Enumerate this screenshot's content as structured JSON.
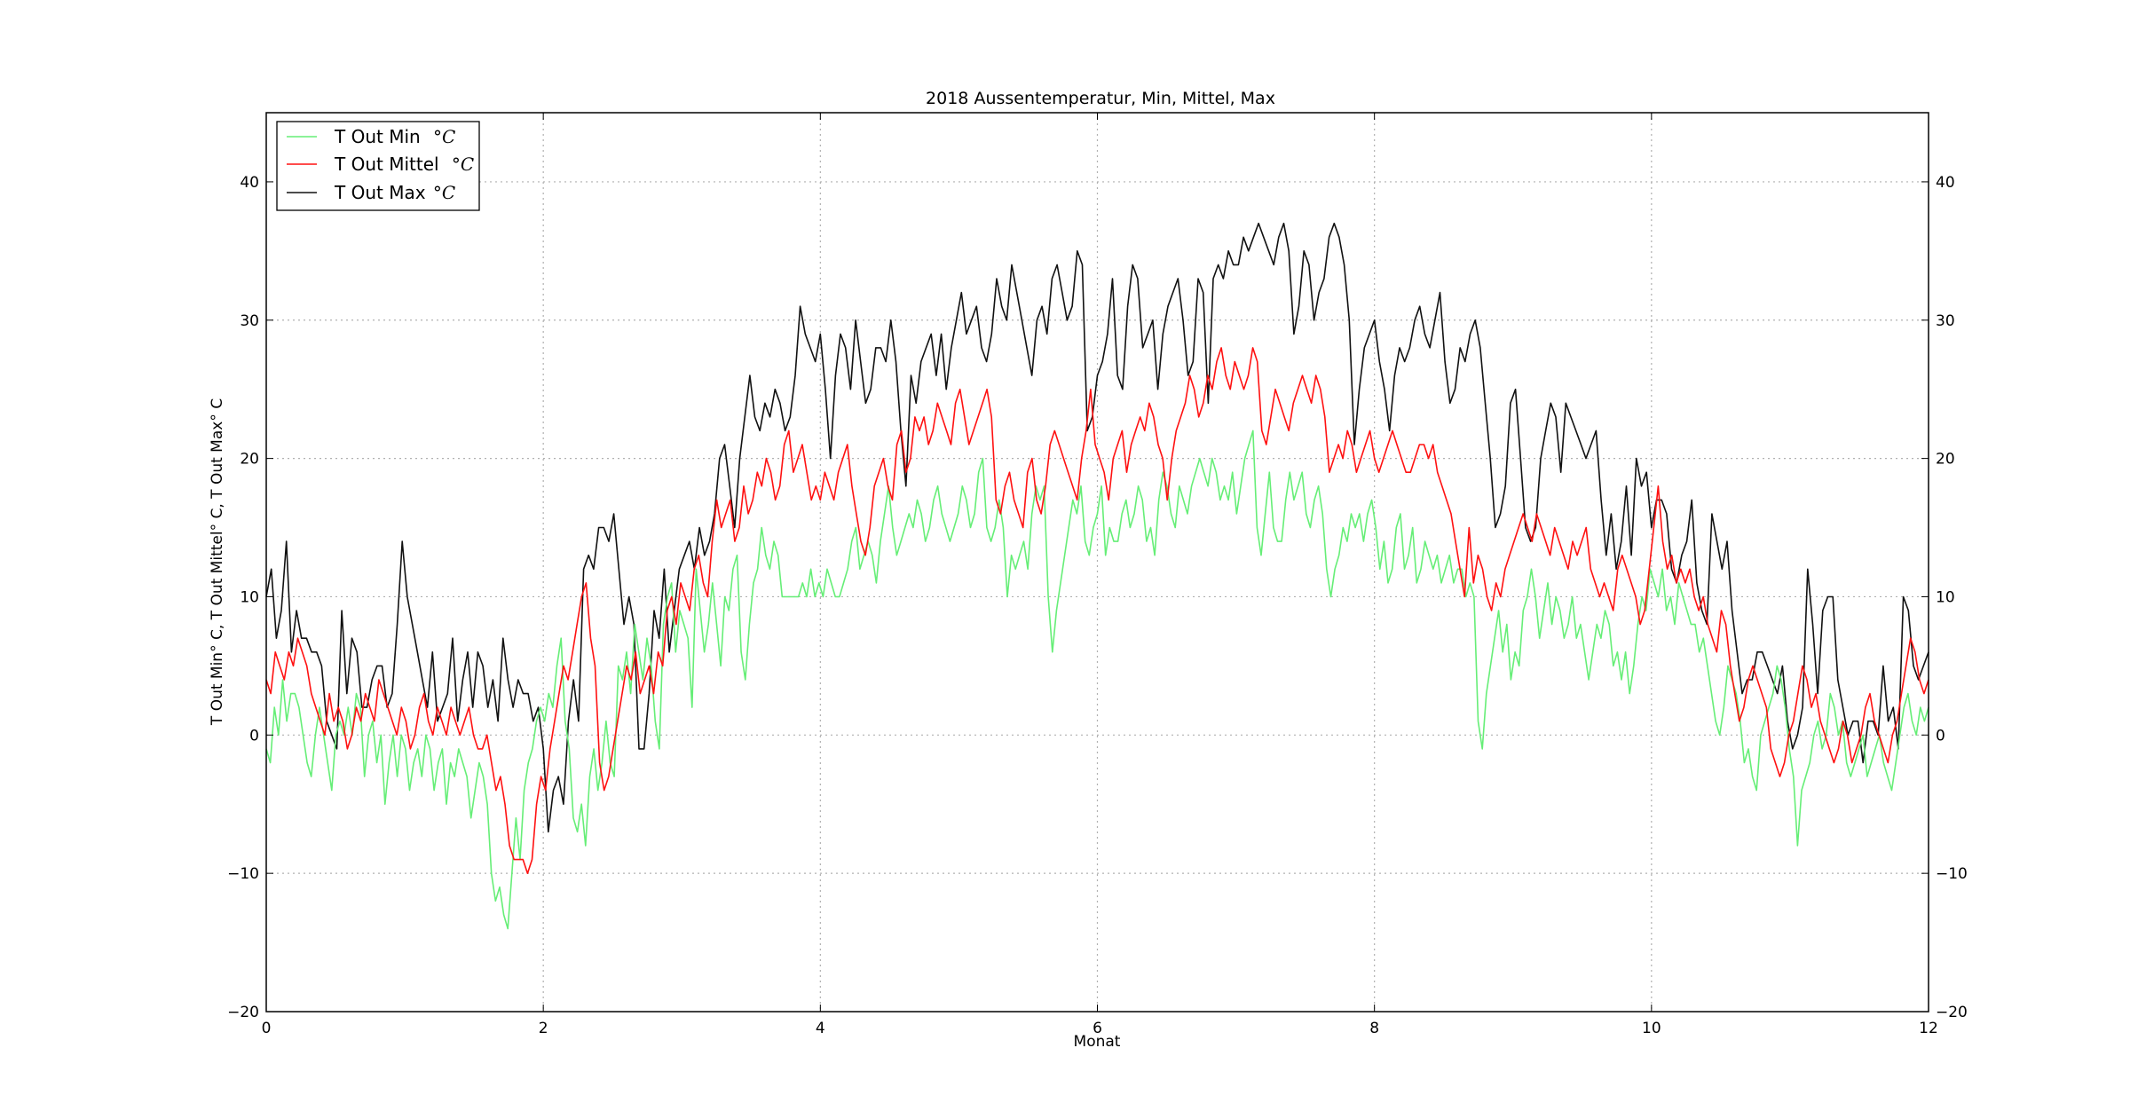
{
  "chart_data": {
    "type": "line",
    "title": "2018 Aussentemperatur, Min, Mittel, Max",
    "xlabel": "Monat",
    "ylabel": "T Out Min° C, T Out Mittel° C, T Out Max° C",
    "xlim": [
      0,
      12
    ],
    "ylim": [
      -20,
      45
    ],
    "xticks": [
      0,
      2,
      4,
      6,
      8,
      10,
      12
    ],
    "yticks": [
      -20,
      -10,
      0,
      10,
      20,
      30,
      40
    ],
    "grid": true,
    "legend_position": "top-left",
    "series": [
      {
        "name": "T Out Min °C",
        "label_text": "T Out Min",
        "label_unit": "°C",
        "color": "#66ee77",
        "x_step_months": 0.0333,
        "values": [
          -1,
          -2,
          2,
          0,
          4,
          1,
          3,
          3,
          2,
          0,
          -2,
          -3,
          0,
          2,
          0,
          -2,
          -4,
          0,
          1,
          0,
          2,
          0,
          3,
          2,
          -3,
          0,
          1,
          -2,
          0,
          -5,
          -2,
          0,
          -3,
          0,
          -1,
          -4,
          -2,
          -1,
          -3,
          0,
          -1,
          -4,
          -2,
          -1,
          -5,
          -2,
          -3,
          -1,
          -2,
          -3,
          -6,
          -4,
          -2,
          -3,
          -5,
          -10,
          -12,
          -11,
          -13,
          -14,
          -10,
          -6,
          -9,
          -4,
          -2,
          -1,
          1,
          2,
          1,
          3,
          2,
          5,
          7,
          1,
          -1,
          -6,
          -7,
          -5,
          -8,
          -3,
          -1,
          -4,
          -2,
          1,
          -2,
          -3,
          5,
          4,
          6,
          3,
          8,
          6,
          4,
          7,
          5,
          1,
          -1,
          8,
          10,
          11,
          6,
          9,
          8,
          7,
          2,
          12,
          9,
          6,
          8,
          11,
          8,
          5,
          10,
          9,
          12,
          13,
          6,
          4,
          8,
          11,
          12,
          15,
          13,
          12,
          14,
          13,
          10,
          10,
          10,
          10,
          10,
          11,
          10,
          12,
          10,
          11,
          10,
          12,
          11,
          10,
          10,
          11,
          12,
          14,
          15,
          12,
          13,
          14,
          13,
          11,
          14,
          16,
          18,
          15,
          13,
          14,
          15,
          16,
          15,
          17,
          16,
          14,
          15,
          17,
          18,
          16,
          15,
          14,
          15,
          16,
          18,
          17,
          15,
          16,
          19,
          20,
          15,
          14,
          15,
          17,
          15,
          10,
          13,
          12,
          13,
          14,
          12,
          16,
          18,
          17,
          18,
          10,
          6,
          9,
          11,
          13,
          15,
          17,
          16,
          18,
          14,
          13,
          15,
          16,
          18,
          13,
          15,
          14,
          14,
          16,
          17,
          15,
          16,
          18,
          17,
          14,
          15,
          13,
          17,
          19,
          18,
          16,
          15,
          18,
          17,
          16,
          18,
          19,
          20,
          19,
          18,
          20,
          19,
          17,
          18,
          17,
          19,
          16,
          18,
          20,
          21,
          22,
          15,
          13,
          16,
          19,
          15,
          14,
          14,
          17,
          19,
          17,
          18,
          19,
          16,
          15,
          17,
          18,
          16,
          12,
          10,
          12,
          13,
          15,
          14,
          16,
          15,
          16,
          14,
          16,
          17,
          15,
          12,
          14,
          11,
          12,
          15,
          16,
          12,
          13,
          15,
          11,
          12,
          14,
          13,
          12,
          13,
          11,
          12,
          13,
          11,
          12,
          12,
          10,
          11,
          10,
          1,
          -1,
          3,
          5,
          7,
          9,
          6,
          8,
          4,
          6,
          5,
          9,
          10,
          12,
          10,
          7,
          9,
          11,
          8,
          10,
          9,
          7,
          8,
          10,
          7,
          8,
          6,
          4,
          6,
          8,
          7,
          9,
          8,
          5,
          6,
          4,
          6,
          3,
          5,
          8,
          10,
          9,
          12,
          11,
          10,
          12,
          9,
          10,
          8,
          11,
          10,
          9,
          8,
          8,
          6,
          7,
          5,
          3,
          1,
          0,
          2,
          5,
          4,
          3,
          1,
          -2,
          -1,
          -3,
          -4,
          0,
          1,
          2,
          3,
          5,
          4,
          2,
          -1,
          -3,
          -8,
          -4,
          -3,
          -2,
          0,
          1,
          -1,
          0,
          3,
          2,
          0,
          1,
          -2,
          -3,
          -2,
          -1,
          0,
          -3,
          -2,
          -1,
          0,
          -2,
          -3,
          -4,
          -2,
          0,
          2,
          3,
          1,
          0,
          2,
          1,
          2
        ]
      },
      {
        "name": "T Out Mittel °C",
        "label_text": "T Out Mittel",
        "label_unit": "°C",
        "color": "#ff1111",
        "x_step_months": 0.0333,
        "values": [
          4,
          3,
          6,
          5,
          4,
          6,
          5,
          7,
          6,
          5,
          3,
          2,
          1,
          0,
          3,
          1,
          2,
          1,
          -1,
          0,
          2,
          1,
          3,
          2,
          1,
          4,
          3,
          2,
          1,
          0,
          2,
          1,
          -1,
          0,
          2,
          3,
          1,
          0,
          2,
          1,
          0,
          2,
          1,
          0,
          1,
          2,
          0,
          -1,
          -1,
          0,
          -2,
          -4,
          -3,
          -5,
          -8,
          -9,
          -9,
          -9,
          -10,
          -9,
          -5,
          -3,
          -4,
          -1,
          1,
          3,
          5,
          4,
          6,
          8,
          10,
          11,
          7,
          5,
          -2,
          -4,
          -3,
          -1,
          1,
          3,
          5,
          4,
          6,
          3,
          4,
          5,
          3,
          6,
          5,
          9,
          10,
          8,
          11,
          10,
          9,
          12,
          13,
          11,
          10,
          14,
          17,
          15,
          16,
          17,
          14,
          15,
          18,
          16,
          17,
          19,
          18,
          20,
          19,
          17,
          18,
          21,
          22,
          19,
          20,
          21,
          19,
          17,
          18,
          17,
          19,
          18,
          17,
          19,
          20,
          21,
          18,
          16,
          14,
          13,
          15,
          18,
          19,
          20,
          18,
          17,
          21,
          22,
          19,
          20,
          23,
          22,
          23,
          21,
          22,
          24,
          23,
          22,
          21,
          24,
          25,
          23,
          21,
          22,
          23,
          24,
          25,
          23,
          17,
          16,
          18,
          19,
          17,
          16,
          15,
          19,
          20,
          17,
          16,
          18,
          21,
          22,
          21,
          20,
          19,
          18,
          17,
          20,
          22,
          25,
          21,
          20,
          19,
          17,
          20,
          21,
          22,
          19,
          21,
          22,
          23,
          22,
          24,
          23,
          21,
          20,
          17,
          20,
          22,
          23,
          24,
          26,
          25,
          23,
          24,
          26,
          25,
          27,
          28,
          26,
          25,
          27,
          26,
          25,
          26,
          28,
          27,
          22,
          21,
          23,
          25,
          24,
          23,
          22,
          24,
          25,
          26,
          25,
          24,
          26,
          25,
          23,
          19,
          20,
          21,
          20,
          22,
          21,
          19,
          20,
          21,
          22,
          20,
          19,
          20,
          21,
          22,
          21,
          20,
          19,
          19,
          20,
          21,
          21,
          20,
          21,
          19,
          18,
          17,
          16,
          14,
          12,
          10,
          15,
          11,
          13,
          12,
          10,
          9,
          11,
          10,
          12,
          13,
          14,
          15,
          16,
          15,
          14,
          16,
          15,
          14,
          13,
          15,
          14,
          13,
          12,
          14,
          13,
          14,
          15,
          12,
          11,
          10,
          11,
          10,
          9,
          12,
          13,
          12,
          11,
          10,
          8,
          9,
          12,
          15,
          18,
          14,
          12,
          13,
          11,
          12,
          11,
          12,
          10,
          9,
          10,
          8,
          7,
          6,
          9,
          8,
          5,
          3,
          1,
          2,
          4,
          5,
          4,
          3,
          2,
          -1,
          -2,
          -3,
          -2,
          0,
          1,
          3,
          5,
          4,
          2,
          3,
          1,
          0,
          -1,
          -2,
          -1,
          1,
          0,
          -2,
          -1,
          0,
          2,
          3,
          1,
          0,
          -1,
          -2,
          0,
          1,
          3,
          5,
          7,
          6,
          4,
          3,
          4
        ]
      },
      {
        "name": "T Out Max °C",
        "label_text": "T Out Max",
        "label_unit": "°C",
        "color": "#111111",
        "x_step_months": 0.0333,
        "values": [
          10,
          12,
          7,
          9,
          14,
          6,
          9,
          7,
          7,
          6,
          6,
          5,
          1,
          0,
          -1,
          9,
          3,
          7,
          6,
          2,
          2,
          4,
          5,
          5,
          2,
          3,
          8,
          14,
          10,
          8,
          6,
          4,
          2,
          6,
          1,
          2,
          3,
          7,
          1,
          4,
          6,
          2,
          6,
          5,
          2,
          4,
          1,
          7,
          4,
          2,
          4,
          3,
          3,
          1,
          2,
          -1,
          -7,
          -4,
          -3,
          -5,
          1,
          4,
          1,
          12,
          13,
          12,
          15,
          15,
          14,
          16,
          12,
          8,
          10,
          8,
          -1,
          -1,
          3,
          9,
          7,
          12,
          6,
          9,
          12,
          13,
          14,
          12,
          15,
          13,
          14,
          16,
          20,
          21,
          18,
          15,
          20,
          23,
          26,
          23,
          22,
          24,
          23,
          25,
          24,
          22,
          23,
          26,
          31,
          29,
          28,
          27,
          29,
          25,
          20,
          26,
          29,
          28,
          25,
          30,
          27,
          24,
          25,
          28,
          28,
          27,
          30,
          27,
          22,
          18,
          26,
          24,
          27,
          28,
          29,
          26,
          29,
          25,
          28,
          30,
          32,
          29,
          30,
          31,
          28,
          27,
          29,
          33,
          31,
          30,
          34,
          32,
          30,
          28,
          26,
          30,
          31,
          29,
          33,
          34,
          32,
          30,
          31,
          35,
          34,
          22,
          23,
          26,
          27,
          29,
          33,
          26,
          25,
          31,
          34,
          33,
          28,
          29,
          30,
          25,
          29,
          31,
          32,
          33,
          30,
          26,
          27,
          33,
          32,
          24,
          33,
          34,
          33,
          35,
          34,
          34,
          36,
          35,
          36,
          37,
          36,
          35,
          34,
          36,
          37,
          35,
          29,
          31,
          35,
          34,
          30,
          32,
          33,
          36,
          37,
          36,
          34,
          30,
          21,
          25,
          28,
          29,
          30,
          27,
          25,
          22,
          26,
          28,
          27,
          28,
          30,
          31,
          29,
          28,
          30,
          32,
          27,
          24,
          25,
          28,
          27,
          29,
          30,
          28,
          24,
          20,
          15,
          16,
          18,
          24,
          25,
          20,
          15,
          14,
          15,
          20,
          22,
          24,
          23,
          19,
          24,
          23,
          22,
          21,
          20,
          21,
          22,
          17,
          13,
          16,
          12,
          14,
          18,
          13,
          20,
          18,
          19,
          15,
          17,
          17,
          16,
          12,
          11,
          13,
          14,
          17,
          11,
          9,
          8,
          16,
          14,
          12,
          14,
          9,
          6,
          3,
          4,
          4,
          6,
          6,
          5,
          4,
          3,
          5,
          1,
          -1,
          0,
          2,
          12,
          8,
          3,
          9,
          10,
          10,
          4,
          2,
          0,
          1,
          1,
          -2,
          1,
          1,
          0,
          5,
          1,
          2,
          -1,
          10,
          9,
          5,
          4,
          5,
          6
        ]
      }
    ]
  }
}
